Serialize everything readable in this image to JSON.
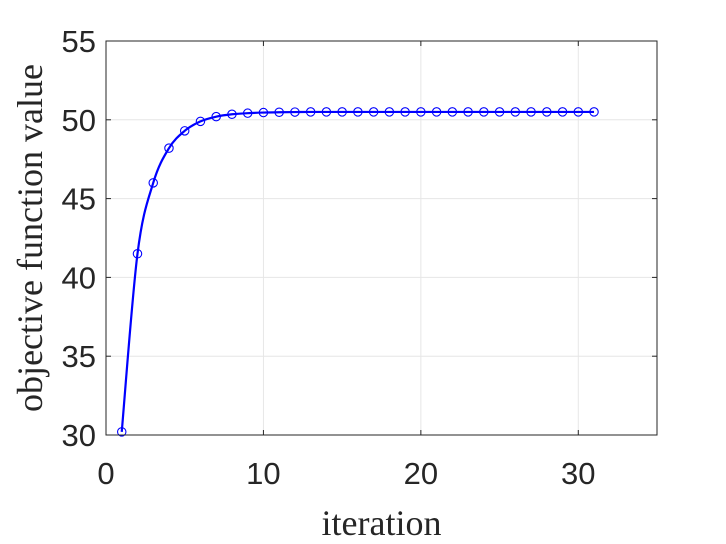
{
  "chart_data": {
    "type": "line",
    "title": "",
    "xlabel": "iteration",
    "ylabel": "objective function value",
    "xlim": [
      0,
      35
    ],
    "ylim": [
      30,
      55
    ],
    "xticks": [
      0,
      10,
      20,
      30
    ],
    "yticks": [
      30,
      35,
      40,
      45,
      50,
      55
    ],
    "grid": true,
    "legend": "none",
    "series": [
      {
        "color": "#0000ff",
        "marker": "circle",
        "x": [
          1,
          2,
          3,
          4,
          5,
          6,
          7,
          8,
          9,
          10,
          11,
          12,
          13,
          14,
          15,
          16,
          17,
          18,
          19,
          20,
          21,
          22,
          23,
          24,
          25,
          26,
          27,
          28,
          29,
          30,
          31
        ],
        "y": [
          30.2,
          41.5,
          46.0,
          48.2,
          49.3,
          49.9,
          50.2,
          50.35,
          50.42,
          50.46,
          50.48,
          50.49,
          50.5,
          50.5,
          50.5,
          50.5,
          50.5,
          50.5,
          50.5,
          50.5,
          50.5,
          50.5,
          50.5,
          50.5,
          50.5,
          50.5,
          50.5,
          50.5,
          50.5,
          50.5,
          50.5
        ]
      }
    ]
  }
}
